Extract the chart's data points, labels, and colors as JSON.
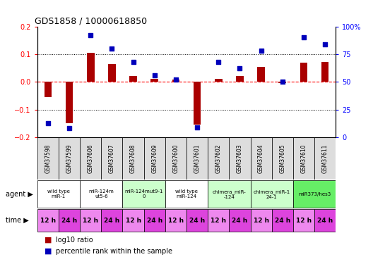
{
  "title": "GDS1858 / 10000618850",
  "samples": [
    "GSM37598",
    "GSM37599",
    "GSM37606",
    "GSM37607",
    "GSM37608",
    "GSM37609",
    "GSM37600",
    "GSM37601",
    "GSM37602",
    "GSM37603",
    "GSM37604",
    "GSM37605",
    "GSM37610",
    "GSM37611"
  ],
  "log10_ratio": [
    -0.055,
    -0.15,
    0.105,
    0.065,
    0.02,
    0.012,
    0.008,
    -0.155,
    0.01,
    0.022,
    0.055,
    -0.005,
    0.068,
    0.072
  ],
  "percentile_rank": [
    13,
    8,
    92,
    80,
    68,
    56,
    52,
    9,
    68,
    62,
    78,
    50,
    90,
    84
  ],
  "agents": [
    {
      "label": "wild type\nmiR-1",
      "cols": [
        0,
        1
      ],
      "color": "#ffffff"
    },
    {
      "label": "miR-124m\nut5-6",
      "cols": [
        2,
        3
      ],
      "color": "#ffffff"
    },
    {
      "label": "miR-124mut9-1\n0",
      "cols": [
        4,
        5
      ],
      "color": "#ccffcc"
    },
    {
      "label": "wild type\nmiR-124",
      "cols": [
        6,
        7
      ],
      "color": "#ffffff"
    },
    {
      "label": "chimera_miR-\n-124",
      "cols": [
        8,
        9
      ],
      "color": "#ccffcc"
    },
    {
      "label": "chimera_miR-1\n24-1",
      "cols": [
        10,
        11
      ],
      "color": "#ccffcc"
    },
    {
      "label": "miR373/hes3",
      "cols": [
        12,
        13
      ],
      "color": "#66ee66"
    }
  ],
  "time_labels": [
    "12 h",
    "24 h",
    "12 h",
    "24 h",
    "12 h",
    "24 h",
    "12 h",
    "24 h",
    "12 h",
    "24 h",
    "12 h",
    "24 h",
    "12 h",
    "24 h"
  ],
  "time_colors_alt": [
    "#ee88ee",
    "#dd44dd"
  ],
  "ylim_left": [
    -0.2,
    0.2
  ],
  "ylim_right": [
    0,
    100
  ],
  "bar_color": "#aa0000",
  "dot_color": "#0000bb",
  "bg_color": "#ffffff",
  "legend_items": [
    {
      "label": "log10 ratio",
      "color": "#aa0000"
    },
    {
      "label": "percentile rank within the sample",
      "color": "#0000bb"
    }
  ],
  "left_yticks": [
    -0.2,
    -0.1,
    0.0,
    0.1,
    0.2
  ],
  "right_yticks": [
    0,
    25,
    50,
    75,
    100
  ],
  "right_yticklabels": [
    "0",
    "25",
    "50",
    "75",
    "100%"
  ]
}
